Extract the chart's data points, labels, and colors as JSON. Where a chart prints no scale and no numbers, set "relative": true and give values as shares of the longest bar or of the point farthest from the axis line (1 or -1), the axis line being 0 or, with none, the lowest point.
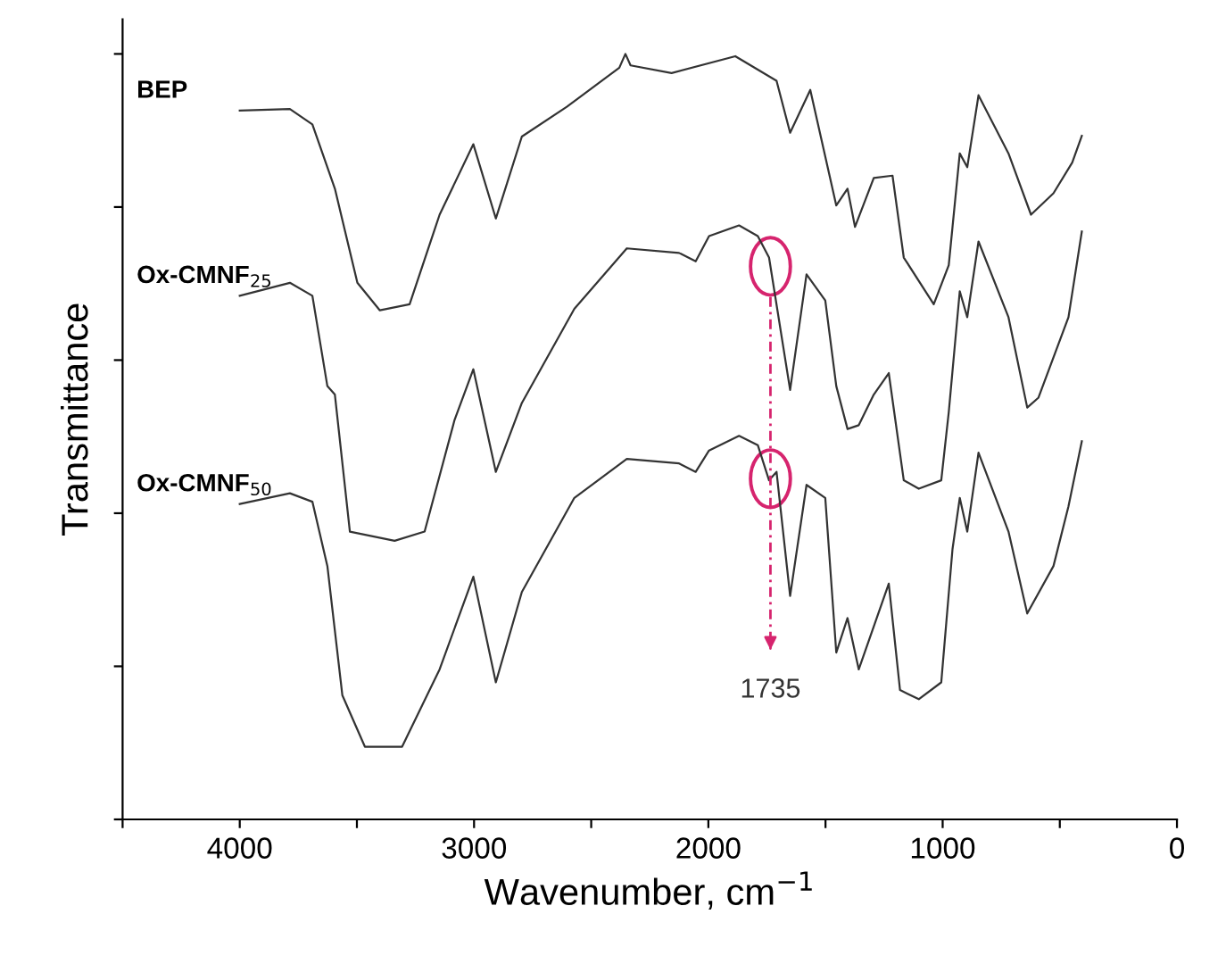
{
  "chart_data": {
    "type": "line",
    "relative": true,
    "xlabel": "Wavenumber, cm$^{−1}$",
    "ylabel": "Transmittance",
    "xlim": [
      4500,
      0
    ],
    "xticks": [
      {
        "value": 4500,
        "label": null
      },
      4000,
      {
        "value": 3500,
        "label": null
      },
      3000,
      {
        "value": 2500,
        "label": null
      },
      2000,
      {
        "value": 1500,
        "label": null
      },
      1000,
      {
        "value": 500,
        "label": null
      },
      0
    ],
    "tick_labels": "x",
    "grid": false,
    "legend": false,
    "marker": "none",
    "line_style": "solid",
    "ref_lines": [
      {
        "axis": "x",
        "value": 1735,
        "label": "1735",
        "color": "#d6246e",
        "line_style": "dashed"
      }
    ],
    "series": [
      {
        "name": "BEP",
        "color": "#333333",
        "x": [
          4000,
          3786,
          3690,
          3594,
          3498,
          3402,
          3275,
          3147,
          3003,
          2907,
          2796,
          2604,
          2380,
          2354,
          2332,
          2157,
          1885,
          1709,
          1651,
          1565,
          1454,
          1406,
          1374,
          1294,
          1214,
          1166,
          1038,
          974,
          927,
          895,
          847,
          719,
          623,
          527,
          447,
          406
        ],
        "values": [
          0.926,
          0.928,
          0.908,
          0.824,
          0.701,
          0.665,
          0.673,
          0.79,
          0.882,
          0.785,
          0.892,
          0.931,
          0.982,
          1.0,
          0.985,
          0.975,
          0.997,
          0.965,
          0.897,
          0.953,
          0.802,
          0.824,
          0.774,
          0.838,
          0.841,
          0.734,
          0.673,
          0.724,
          0.87,
          0.852,
          0.946,
          0.87,
          0.79,
          0.818,
          0.858,
          0.893
        ]
      },
      {
        "name": "Ox-CMNF$_{25}$",
        "color": "#333333",
        "x": [
          4000,
          3786,
          3690,
          3626,
          3594,
          3530,
          3339,
          3211,
          3083,
          3003,
          2907,
          2796,
          2572,
          2348,
          2125,
          2054,
          1997,
          1869,
          1789,
          1741,
          1651,
          1581,
          1501,
          1454,
          1406,
          1358,
          1294,
          1230,
          1166,
          1102,
          1006,
          974,
          927,
          895,
          847,
          719,
          639,
          591,
          463,
          406
        ],
        "values": [
          0.684,
          0.701,
          0.684,
          0.566,
          0.555,
          0.376,
          0.364,
          0.376,
          0.522,
          0.588,
          0.454,
          0.544,
          0.667,
          0.746,
          0.74,
          0.729,
          0.762,
          0.776,
          0.762,
          0.734,
          0.561,
          0.712,
          0.678,
          0.566,
          0.51,
          0.515,
          0.555,
          0.583,
          0.443,
          0.432,
          0.443,
          0.532,
          0.69,
          0.656,
          0.755,
          0.656,
          0.538,
          0.551,
          0.656,
          0.768
        ]
      },
      {
        "name": "Ox-CMNF$_{50}$",
        "color": "#333333",
        "x": [
          4000,
          3786,
          3690,
          3626,
          3562,
          3466,
          3307,
          3147,
          3003,
          2907,
          2796,
          2572,
          2348,
          2125,
          2054,
          1997,
          1869,
          1789,
          1741,
          1709,
          1651,
          1581,
          1501,
          1454,
          1406,
          1358,
          1294,
          1230,
          1182,
          1102,
          1006,
          958,
          927,
          895,
          847,
          719,
          639,
          527,
          463,
          406
        ],
        "values": [
          0.412,
          0.426,
          0.415,
          0.331,
          0.162,
          0.095,
          0.095,
          0.196,
          0.317,
          0.179,
          0.297,
          0.42,
          0.471,
          0.465,
          0.454,
          0.482,
          0.501,
          0.489,
          0.443,
          0.454,
          0.292,
          0.437,
          0.42,
          0.218,
          0.263,
          0.196,
          0.252,
          0.308,
          0.169,
          0.157,
          0.179,
          0.353,
          0.42,
          0.376,
          0.479,
          0.376,
          0.269,
          0.331,
          0.409,
          0.494
        ]
      }
    ]
  }
}
